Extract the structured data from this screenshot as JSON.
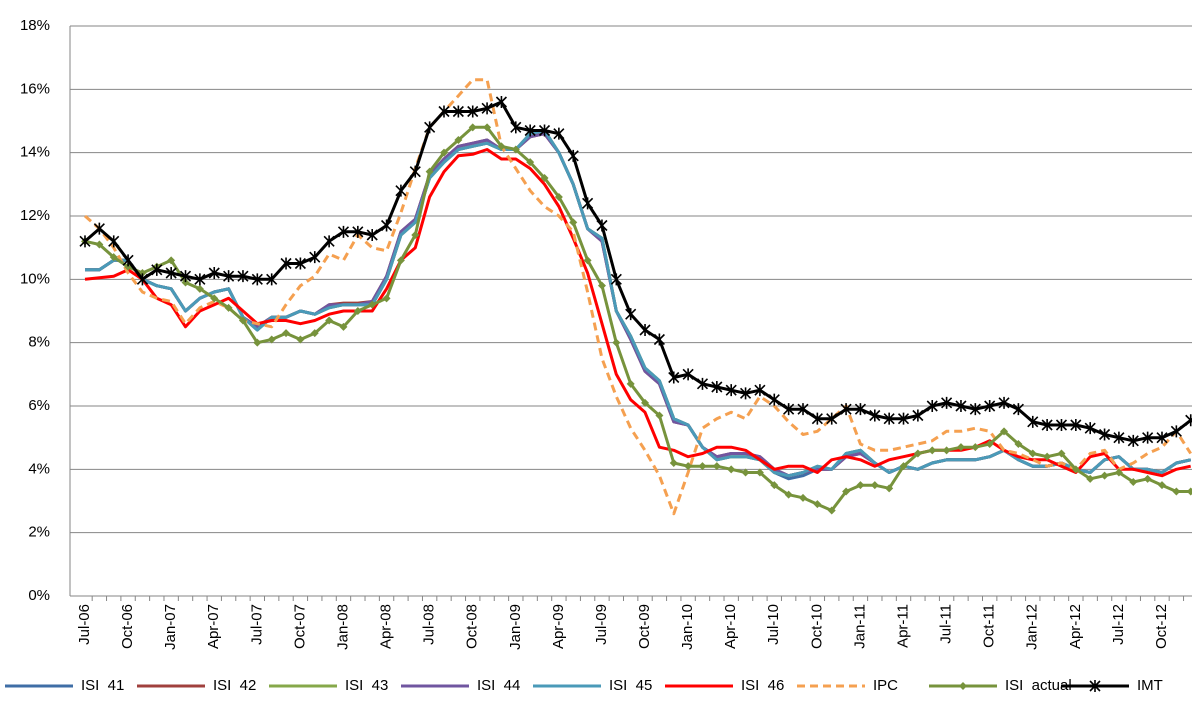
{
  "chart_data": {
    "type": "line",
    "categories": [
      "Jul-06",
      null,
      null,
      "Oct-06",
      null,
      null,
      "Jan-07",
      null,
      null,
      "Apr-07",
      null,
      null,
      "Jul-07",
      null,
      null,
      "Oct-07",
      null,
      null,
      "Jan-08",
      null,
      null,
      "Apr-08",
      null,
      null,
      "Jul-08",
      null,
      null,
      "Oct-08",
      null,
      null,
      "Jan-09",
      null,
      null,
      "Apr-09",
      null,
      null,
      "Jul-09",
      null,
      null,
      "Oct-09",
      null,
      null,
      "Jan-10",
      null,
      null,
      "Apr-10",
      null,
      null,
      "Jul-10",
      null,
      null,
      "Oct-10",
      null,
      null,
      "Jan-11",
      null,
      null,
      "Apr-11",
      null,
      null,
      "Jul-11",
      null,
      null,
      "Oct-11",
      null,
      null,
      "Jan-12",
      null,
      null,
      "Apr-12",
      null,
      null,
      "Jul-12",
      null,
      null,
      "Oct-12",
      null,
      null
    ],
    "ylim": [
      0,
      18
    ],
    "yticks": [
      {
        "value": 0,
        "label": "0%"
      },
      {
        "value": 2,
        "label": "2%"
      },
      {
        "value": 4,
        "label": "4%"
      },
      {
        "value": 6,
        "label": "6%"
      },
      {
        "value": 8,
        "label": "8%"
      },
      {
        "value": 10,
        "label": "10%"
      },
      {
        "value": 12,
        "label": "12%"
      },
      {
        "value": 14,
        "label": "14%"
      },
      {
        "value": 16,
        "label": "16%"
      },
      {
        "value": 18,
        "label": "18%"
      }
    ],
    "grid": true,
    "legend": "bottom",
    "series": [
      {
        "name": "ISI  41",
        "color": "#3f6ea6",
        "values": [
          10.3,
          10.3,
          10.6,
          10.6,
          10.0,
          9.8,
          9.7,
          9.0,
          9.4,
          9.6,
          9.7,
          8.8,
          8.4,
          8.8,
          8.8,
          9.0,
          8.9,
          9.1,
          9.2,
          9.2,
          9.2,
          10.0,
          11.4,
          11.8,
          13.2,
          13.7,
          14.1,
          14.2,
          14.3,
          14.1,
          14.1,
          14.6,
          14.7,
          14.0,
          13.0,
          11.6,
          11.3,
          9.0,
          8.2,
          7.2,
          6.8,
          5.6,
          5.4,
          4.7,
          4.3,
          4.4,
          4.4,
          4.3,
          3.9,
          3.7,
          3.8,
          4.0,
          4.0,
          4.5,
          4.6,
          4.2,
          3.9,
          4.1,
          4.0,
          4.2,
          4.3,
          4.3,
          4.3,
          4.4,
          4.6,
          4.3,
          4.1,
          4.1,
          4.2,
          4.0,
          3.9,
          4.3,
          4.4,
          4.0,
          4.0,
          3.9,
          4.2,
          4.3
        ]
      },
      {
        "name": "ISI  42",
        "color": "#a0403d",
        "values": [
          10.3,
          10.3,
          10.6,
          10.6,
          10.0,
          9.8,
          9.7,
          9.0,
          9.4,
          9.6,
          9.7,
          8.8,
          8.5,
          8.8,
          8.8,
          9.0,
          8.9,
          9.2,
          9.25,
          9.25,
          9.3,
          10.1,
          11.5,
          11.9,
          13.3,
          13.8,
          14.2,
          14.3,
          14.4,
          14.1,
          14.1,
          14.5,
          14.6,
          14.0,
          13.0,
          11.6,
          11.2,
          9.0,
          8.1,
          7.1,
          6.7,
          5.5,
          5.4,
          4.7,
          4.4,
          4.5,
          4.5,
          4.4,
          4.0,
          3.8,
          3.9,
          4.0,
          4.0,
          4.4,
          4.5,
          4.2,
          3.9,
          4.1,
          4.0,
          4.2,
          4.3,
          4.3,
          4.3,
          4.4,
          4.6,
          4.3,
          4.1,
          4.1,
          4.2,
          4.0,
          3.9,
          4.3,
          4.4,
          4.0,
          4.0,
          3.9,
          4.2,
          4.3
        ]
      },
      {
        "name": "ISI  43",
        "color": "#86a84a",
        "values": [
          10.3,
          10.3,
          10.6,
          10.6,
          10.0,
          9.8,
          9.7,
          9.0,
          9.4,
          9.6,
          9.7,
          8.8,
          8.4,
          8.8,
          8.8,
          9.0,
          8.9,
          9.1,
          9.2,
          9.2,
          9.2,
          10.0,
          11.4,
          11.8,
          13.2,
          13.7,
          14.1,
          14.2,
          14.3,
          14.1,
          14.1,
          14.6,
          14.7,
          14.0,
          13.0,
          11.6,
          11.3,
          9.0,
          8.2,
          7.2,
          6.8,
          5.6,
          5.4,
          4.7,
          4.3,
          4.4,
          4.4,
          4.3,
          3.9,
          3.8,
          3.9,
          4.1,
          4.0,
          4.5,
          4.6,
          4.2,
          3.9,
          4.1,
          4.0,
          4.2,
          4.3,
          4.3,
          4.3,
          4.4,
          4.6,
          4.3,
          4.1,
          4.1,
          4.2,
          4.0,
          3.9,
          4.3,
          4.4,
          4.0,
          4.0,
          3.9,
          4.2,
          4.3
        ]
      },
      {
        "name": "ISI  44",
        "color": "#7056a0",
        "values": [
          10.3,
          10.3,
          10.6,
          10.6,
          10.0,
          9.8,
          9.7,
          9.0,
          9.4,
          9.6,
          9.7,
          8.8,
          8.5,
          8.8,
          8.8,
          9.0,
          8.9,
          9.2,
          9.2,
          9.2,
          9.3,
          10.1,
          11.5,
          11.9,
          13.3,
          13.8,
          14.2,
          14.3,
          14.4,
          14.1,
          14.1,
          14.5,
          14.6,
          14.0,
          13.0,
          11.6,
          11.2,
          9.0,
          8.1,
          7.1,
          6.7,
          5.5,
          5.4,
          4.7,
          4.4,
          4.5,
          4.5,
          4.4,
          4.0,
          3.8,
          3.9,
          4.0,
          4.0,
          4.4,
          4.5,
          4.2,
          3.9,
          4.1,
          4.0,
          4.2,
          4.3,
          4.3,
          4.3,
          4.4,
          4.6,
          4.3,
          4.1,
          4.1,
          4.2,
          4.0,
          3.9,
          4.3,
          4.4,
          4.0,
          4.0,
          3.9,
          4.2,
          4.3
        ]
      },
      {
        "name": "ISI  45",
        "color": "#4a9ab8",
        "values": [
          10.3,
          10.3,
          10.6,
          10.6,
          10.0,
          9.8,
          9.7,
          9.0,
          9.4,
          9.6,
          9.7,
          8.8,
          8.4,
          8.8,
          8.8,
          9.0,
          8.9,
          9.1,
          9.2,
          9.2,
          9.2,
          10.0,
          11.4,
          11.8,
          13.2,
          13.7,
          14.1,
          14.2,
          14.3,
          14.1,
          14.1,
          14.6,
          14.7,
          14.0,
          13.0,
          11.6,
          11.3,
          9.0,
          8.2,
          7.2,
          6.8,
          5.6,
          5.4,
          4.7,
          4.3,
          4.4,
          4.4,
          4.3,
          3.9,
          3.8,
          3.9,
          4.1,
          4.0,
          4.5,
          4.6,
          4.2,
          3.9,
          4.1,
          4.0,
          4.2,
          4.3,
          4.3,
          4.3,
          4.4,
          4.6,
          4.3,
          4.1,
          4.1,
          4.2,
          4.0,
          3.9,
          4.3,
          4.4,
          4.0,
          4.0,
          3.9,
          4.2,
          4.3
        ]
      },
      {
        "name": "ISI  46",
        "color": "#ff0000",
        "values": [
          10.0,
          10.05,
          10.1,
          10.3,
          10.0,
          9.4,
          9.2,
          8.5,
          9.0,
          9.2,
          9.4,
          9.0,
          8.6,
          8.7,
          8.7,
          8.6,
          8.7,
          8.9,
          9.0,
          9.0,
          9.0,
          9.7,
          10.6,
          11.0,
          12.6,
          13.4,
          13.9,
          13.95,
          14.1,
          13.8,
          13.8,
          13.5,
          13.0,
          12.3,
          11.3,
          10.2,
          8.6,
          7.0,
          6.2,
          5.8,
          4.7,
          4.6,
          4.4,
          4.5,
          4.7,
          4.7,
          4.6,
          4.3,
          4.0,
          4.1,
          4.1,
          3.9,
          4.3,
          4.4,
          4.3,
          4.1,
          4.3,
          4.4,
          4.5,
          4.6,
          4.6,
          4.6,
          4.7,
          4.9,
          4.6,
          4.4,
          4.3,
          4.3,
          4.1,
          3.9,
          4.4,
          4.5,
          4.0,
          4.0,
          3.9,
          3.8,
          4.0,
          4.1
        ]
      },
      {
        "name": "IPC",
        "color": "#f5a050",
        "style": "dashed",
        "values": [
          12.0,
          11.6,
          11.0,
          10.2,
          9.6,
          9.4,
          9.3,
          8.6,
          9.1,
          9.3,
          9.1,
          8.7,
          8.6,
          8.5,
          9.2,
          9.8,
          10.1,
          10.8,
          10.6,
          11.4,
          11.0,
          10.9,
          12.1,
          13.5,
          14.8,
          15.3,
          15.8,
          16.3,
          16.3,
          14.2,
          13.5,
          12.8,
          12.3,
          12.0,
          11.5,
          9.6,
          7.5,
          6.3,
          5.3,
          4.6,
          3.8,
          2.6,
          3.9,
          5.3,
          5.6,
          5.8,
          5.6,
          6.3,
          6.0,
          5.5,
          5.1,
          5.2,
          5.6,
          6.0,
          4.8,
          4.6,
          4.6,
          4.7,
          4.8,
          4.9,
          5.2,
          5.2,
          5.3,
          5.2,
          4.6,
          4.5,
          4.3,
          4.1,
          4.2,
          4.0,
          4.5,
          4.6,
          4.0,
          4.2,
          4.5,
          4.7,
          5.2,
          4.5
        ]
      },
      {
        "name": "ISI  actual",
        "color": "#77933c",
        "marker": "diamond",
        "values": [
          11.2,
          11.1,
          10.7,
          10.4,
          10.2,
          10.4,
          10.6,
          9.9,
          9.7,
          9.4,
          9.1,
          8.7,
          8.0,
          8.1,
          8.3,
          8.1,
          8.3,
          8.7,
          8.5,
          9.0,
          9.2,
          9.4,
          10.6,
          11.4,
          13.4,
          14.0,
          14.4,
          14.8,
          14.8,
          14.2,
          14.1,
          13.7,
          13.2,
          12.6,
          11.8,
          10.6,
          9.8,
          8.0,
          6.7,
          6.1,
          5.7,
          4.2,
          4.1,
          4.1,
          4.1,
          4.0,
          3.9,
          3.9,
          3.5,
          3.2,
          3.1,
          2.9,
          2.7,
          3.3,
          3.5,
          3.5,
          3.4,
          4.1,
          4.5,
          4.6,
          4.6,
          4.7,
          4.7,
          4.8,
          5.2,
          4.8,
          4.5,
          4.4,
          4.5,
          4.0,
          3.7,
          3.8,
          3.9,
          3.6,
          3.7,
          3.5,
          3.3,
          3.3
        ]
      },
      {
        "name": "IMT",
        "color": "#000000",
        "marker": "star",
        "values": [
          11.2,
          11.6,
          11.2,
          10.6,
          10.0,
          10.3,
          10.2,
          10.1,
          10.0,
          10.2,
          10.1,
          10.1,
          10.0,
          10.0,
          10.5,
          10.5,
          10.7,
          11.2,
          11.5,
          11.5,
          11.4,
          11.7,
          12.8,
          13.4,
          14.8,
          15.3,
          15.3,
          15.3,
          15.4,
          15.6,
          14.8,
          14.7,
          14.7,
          14.6,
          13.9,
          12.4,
          11.7,
          10.0,
          8.9,
          8.4,
          8.1,
          6.9,
          7.0,
          6.7,
          6.6,
          6.5,
          6.4,
          6.5,
          6.2,
          5.9,
          5.9,
          5.6,
          5.6,
          5.9,
          5.9,
          5.7,
          5.6,
          5.6,
          5.7,
          6.0,
          6.1,
          6.0,
          5.9,
          6.0,
          6.1,
          5.9,
          5.5,
          5.4,
          5.4,
          5.4,
          5.3,
          5.1,
          5.0,
          4.9,
          5.0,
          5.0,
          5.2,
          5.55
        ]
      }
    ]
  }
}
